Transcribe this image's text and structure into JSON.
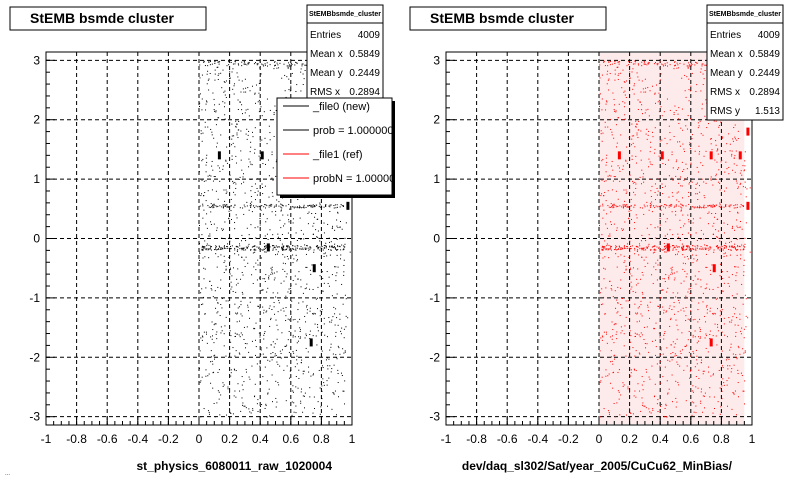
{
  "footer": "...",
  "chart_data": [
    {
      "type": "scatter",
      "title": "StEMB bsmde cluster",
      "xlabel": "st_physics_6080011_raw_1020004",
      "xlim": [
        -1,
        1
      ],
      "ylim": [
        -3.14,
        3.14
      ],
      "xticks": [
        "-1",
        "-0.8",
        "-0.6",
        "-0.4",
        "-0.2",
        "0",
        "0.2",
        "0.4",
        "0.6",
        "0.8",
        "1"
      ],
      "yticks": [
        "-3",
        "-2",
        "-1",
        "0",
        "1",
        "2",
        "3"
      ],
      "grid": true,
      "marker_color": "#000000",
      "stats": {
        "name": "StEMBbsmde_cluster",
        "rows": [
          {
            "label": "Entries",
            "value": "4009"
          },
          {
            "label": "Mean x",
            "value": "0.5849"
          },
          {
            "label": "Mean y",
            "value": "0.2449"
          },
          {
            "label": "RMS x",
            "value": "0.2894"
          }
        ]
      },
      "legend": {
        "placement": "top-right",
        "entries": [
          {
            "label": "_file0 (new)",
            "color": "#000000"
          },
          {
            "label": "prob = 1.000000",
            "color": "#000000"
          },
          {
            "label": "_file1 (ref)",
            "color": "#ff0000"
          },
          {
            "label": "probN = 1.000000",
            "color": "#ff0000"
          }
        ]
      },
      "hotspots": [
        {
          "x": 0.13,
          "y": 1.4
        },
        {
          "x": 0.41,
          "y": 1.4
        },
        {
          "x": 0.45,
          "y": -0.15
        },
        {
          "x": 0.75,
          "y": -0.5
        },
        {
          "x": 0.73,
          "y": -1.75
        },
        {
          "x": 0.97,
          "y": 0.55
        }
      ]
    },
    {
      "type": "scatter",
      "title": "StEMB bsmde cluster",
      "xlabel": "dev/daq_sl302/Sat/year_2005/CuCu62_MinBias/",
      "xlim": [
        -1,
        1
      ],
      "ylim": [
        -3.14,
        3.14
      ],
      "xticks": [
        "-1",
        "-0.8",
        "-0.6",
        "-0.4",
        "-0.2",
        "0",
        "0.2",
        "0.4",
        "0.6",
        "0.8",
        "1"
      ],
      "yticks": [
        "-3",
        "-2",
        "-1",
        "0",
        "1",
        "2",
        "3"
      ],
      "grid": true,
      "marker_color": "#ff0000",
      "stats": {
        "name": "StEMBbsmde_cluster",
        "rows": [
          {
            "label": "Entries",
            "value": "4009"
          },
          {
            "label": "Mean x",
            "value": "0.5849"
          },
          {
            "label": "Mean y",
            "value": "0.2449"
          },
          {
            "label": "RMS x",
            "value": "0.2894"
          },
          {
            "label": "RMS y",
            "value": "1.513"
          }
        ]
      },
      "hotspots": [
        {
          "x": 0.13,
          "y": 1.4
        },
        {
          "x": 0.41,
          "y": 1.4
        },
        {
          "x": 0.73,
          "y": 1.4
        },
        {
          "x": 0.45,
          "y": -0.15
        },
        {
          "x": 0.75,
          "y": -0.5
        },
        {
          "x": 0.73,
          "y": -1.75
        },
        {
          "x": 0.92,
          "y": 1.4
        },
        {
          "x": 0.97,
          "y": 1.8
        },
        {
          "x": 0.97,
          "y": 0.55
        }
      ]
    }
  ]
}
